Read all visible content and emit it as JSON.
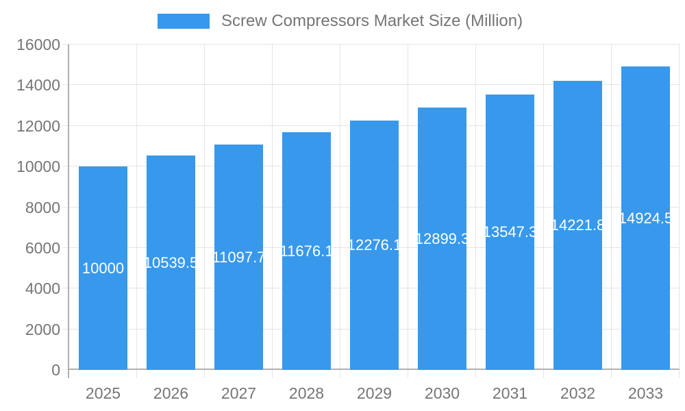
{
  "chart_data": {
    "type": "bar",
    "title": "Screw Compressors Market Size (Million)",
    "legend": [
      "Screw Compressors Market Size (Million)"
    ],
    "legend_position": "top",
    "categories": [
      "2025",
      "2026",
      "2027",
      "2028",
      "2029",
      "2030",
      "2031",
      "2032",
      "2033"
    ],
    "values": [
      10000,
      10539.5,
      11097.7,
      11676.1,
      12276.1,
      12899.3,
      13547.3,
      14221.8,
      14924.5
    ],
    "bar_labels": [
      "10000",
      "10539.5",
      "11097.7",
      "11676.1",
      "12276.1",
      "12899.3",
      "13547.3",
      "14221.8",
      "14924.5"
    ],
    "xlabel": "",
    "ylabel": "",
    "ylim": [
      0,
      16000
    ],
    "yticks": [
      0,
      2000,
      4000,
      6000,
      8000,
      10000,
      12000,
      14000,
      16000
    ],
    "grid": true,
    "colors": {
      "bar": "#3898EC",
      "bar_label": "#FFFFFF",
      "axis": "#B0B0B0",
      "gridline": "#E4E4E4",
      "text": "#757575",
      "background": "#FFFFFF"
    }
  }
}
